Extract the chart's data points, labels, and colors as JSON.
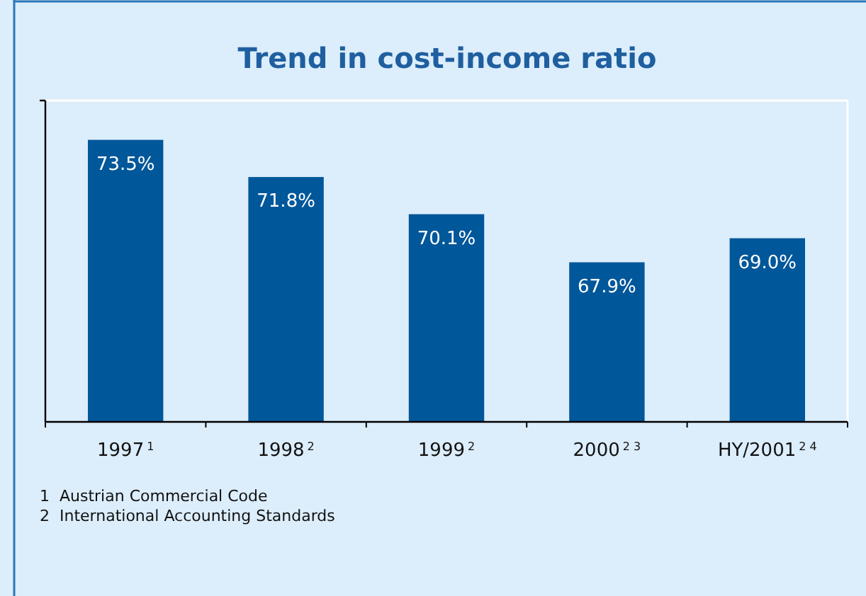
{
  "chart_data": {
    "type": "bar",
    "title": "Trend in cost-income ratio",
    "categories": [
      "1997$^{1}$",
      "1998$^{2}$",
      "1999$^{2}$",
      "2000$^{2 3}$",
      "HY/2001$^{2 4}$"
    ],
    "values": [
      73.5,
      71.8,
      70.1,
      67.9,
      69.0
    ],
    "value_labels": [
      "73.5%",
      "71.8%",
      "70.1%",
      "67.9%",
      "69.0%"
    ],
    "color": "#00579a",
    "ylim": [
      60.6,
      75.3
    ],
    "tick_labels": "x",
    "annotations": [
      "1  Austrian Commercial Code",
      "2  International Accounting Standards"
    ]
  }
}
